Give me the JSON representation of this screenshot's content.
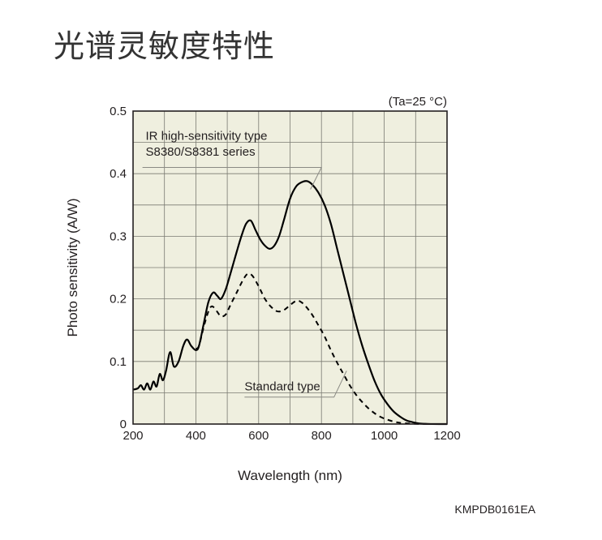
{
  "page": {
    "title": "光谱灵敏度特性",
    "figure_code": "KMPDB0161EA"
  },
  "chart_data": {
    "type": "line",
    "condition_note": "(Ta=25 °C)",
    "xlabel": "Wavelength (nm)",
    "ylabel": "Photo sensitivity (A/W)",
    "xlim": [
      200,
      1200
    ],
    "ylim": [
      0,
      0.5
    ],
    "x_ticks": [
      200,
      400,
      600,
      800,
      1000,
      1200
    ],
    "x_tick_labels": [
      "200",
      "400",
      "600",
      "800",
      "1000",
      "1200"
    ],
    "y_ticks": [
      0,
      0.1,
      0.2,
      0.3,
      0.4,
      0.5
    ],
    "y_tick_labels": [
      "0",
      "0.1",
      "0.2",
      "0.3",
      "0.4",
      "0.5"
    ],
    "grid": true,
    "plot_background": "#efefdf",
    "series": [
      {
        "name": "IR high-sensitivity type S8380/S8381 series",
        "label_lines": [
          "IR high-sensitivity type",
          "S8380/S8381 series"
        ],
        "style": "solid",
        "color": "#000000",
        "points": [
          [
            200,
            0.055
          ],
          [
            215,
            0.057
          ],
          [
            225,
            0.062
          ],
          [
            235,
            0.055
          ],
          [
            245,
            0.065
          ],
          [
            255,
            0.055
          ],
          [
            265,
            0.068
          ],
          [
            275,
            0.06
          ],
          [
            285,
            0.08
          ],
          [
            295,
            0.07
          ],
          [
            305,
            0.085
          ],
          [
            318,
            0.115
          ],
          [
            330,
            0.092
          ],
          [
            345,
            0.1
          ],
          [
            360,
            0.125
          ],
          [
            372,
            0.135
          ],
          [
            385,
            0.125
          ],
          [
            400,
            0.118
          ],
          [
            410,
            0.125
          ],
          [
            425,
            0.16
          ],
          [
            440,
            0.195
          ],
          [
            455,
            0.21
          ],
          [
            468,
            0.205
          ],
          [
            480,
            0.2
          ],
          [
            495,
            0.215
          ],
          [
            510,
            0.24
          ],
          [
            530,
            0.275
          ],
          [
            545,
            0.3
          ],
          [
            560,
            0.32
          ],
          [
            575,
            0.325
          ],
          [
            590,
            0.31
          ],
          [
            605,
            0.295
          ],
          [
            620,
            0.285
          ],
          [
            635,
            0.28
          ],
          [
            650,
            0.285
          ],
          [
            665,
            0.3
          ],
          [
            680,
            0.325
          ],
          [
            700,
            0.36
          ],
          [
            720,
            0.38
          ],
          [
            740,
            0.387
          ],
          [
            755,
            0.388
          ],
          [
            770,
            0.383
          ],
          [
            790,
            0.37
          ],
          [
            810,
            0.35
          ],
          [
            830,
            0.32
          ],
          [
            850,
            0.28
          ],
          [
            870,
            0.24
          ],
          [
            890,
            0.2
          ],
          [
            910,
            0.16
          ],
          [
            930,
            0.125
          ],
          [
            950,
            0.095
          ],
          [
            970,
            0.068
          ],
          [
            990,
            0.047
          ],
          [
            1010,
            0.032
          ],
          [
            1030,
            0.02
          ],
          [
            1050,
            0.012
          ],
          [
            1070,
            0.006
          ],
          [
            1090,
            0.003
          ],
          [
            1110,
            0.001
          ],
          [
            1130,
            0.0003
          ],
          [
            1150,
            0.0001
          ],
          [
            1200,
            0
          ]
        ]
      },
      {
        "name": "Standard type",
        "label_lines": [
          "Standard type"
        ],
        "style": "dashed",
        "color": "#000000",
        "points": [
          [
            400,
            0.12
          ],
          [
            410,
            0.125
          ],
          [
            425,
            0.155
          ],
          [
            440,
            0.18
          ],
          [
            450,
            0.188
          ],
          [
            460,
            0.185
          ],
          [
            470,
            0.178
          ],
          [
            480,
            0.172
          ],
          [
            495,
            0.175
          ],
          [
            510,
            0.19
          ],
          [
            530,
            0.21
          ],
          [
            550,
            0.23
          ],
          [
            565,
            0.24
          ],
          [
            580,
            0.237
          ],
          [
            600,
            0.22
          ],
          [
            620,
            0.2
          ],
          [
            640,
            0.187
          ],
          [
            660,
            0.18
          ],
          [
            680,
            0.182
          ],
          [
            700,
            0.19
          ],
          [
            720,
            0.197
          ],
          [
            735,
            0.195
          ],
          [
            750,
            0.188
          ],
          [
            770,
            0.175
          ],
          [
            790,
            0.158
          ],
          [
            810,
            0.14
          ],
          [
            830,
            0.118
          ],
          [
            850,
            0.098
          ],
          [
            870,
            0.08
          ],
          [
            890,
            0.062
          ],
          [
            910,
            0.047
          ],
          [
            930,
            0.035
          ],
          [
            950,
            0.025
          ],
          [
            970,
            0.017
          ],
          [
            990,
            0.011
          ],
          [
            1010,
            0.007
          ],
          [
            1030,
            0.004
          ],
          [
            1050,
            0.002
          ],
          [
            1080,
            0.0008
          ],
          [
            1110,
            0.0002
          ],
          [
            1150,
            0
          ]
        ]
      }
    ]
  }
}
